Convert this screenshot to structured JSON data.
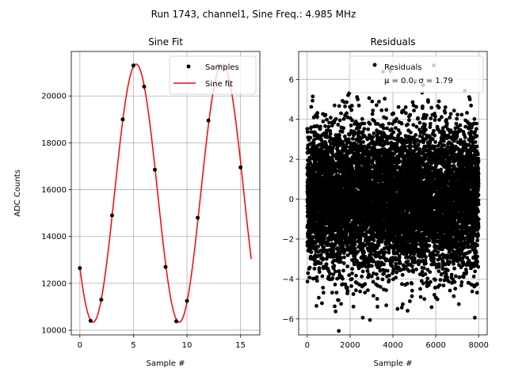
{
  "figure": {
    "suptitle": "Run 1743, channel1, Sine Freq.: 4.985 MHz"
  },
  "chart_data": [
    {
      "type": "scatter+line",
      "title": "Sine Fit",
      "xlabel": "Sample #",
      "ylabel": "ADC Counts",
      "xlim": [
        -0.8,
        16.8
      ],
      "ylim": [
        9800,
        21900
      ],
      "xticks": [
        0,
        5,
        10,
        15
      ],
      "yticks": [
        10000,
        12000,
        14000,
        16000,
        18000,
        20000
      ],
      "grid": true,
      "legend": {
        "placement": "upper-right",
        "entries": [
          "Samples",
          "Sine fit"
        ]
      },
      "series": [
        {
          "name": "Samples",
          "kind": "scatter",
          "color": "#000000",
          "x": [
            0,
            1,
            2,
            3,
            4,
            5,
            6,
            7,
            8,
            9,
            10,
            11,
            12,
            13,
            14,
            15
          ],
          "y": [
            12650,
            10400,
            11300,
            14900,
            19000,
            21300,
            20400,
            16850,
            12700,
            10380,
            11250,
            14800,
            18950,
            21300,
            20450,
            16950
          ]
        },
        {
          "name": "Sine fit",
          "kind": "line",
          "color": "#ff0000",
          "function": "sine",
          "x_range": [
            0,
            16
          ],
          "params": {
            "offset": 15850,
            "amplitude": 5510,
            "period": 8.05,
            "peak_x": 5.25
          }
        }
      ]
    },
    {
      "type": "scatter",
      "title": "Residuals",
      "xlabel": "Sample #",
      "ylabel": "",
      "xlim": [
        -400,
        8400
      ],
      "ylim": [
        -6.8,
        7.4
      ],
      "xticks": [
        0,
        2000,
        4000,
        6000,
        8000
      ],
      "yticks": [
        -6,
        -4,
        -2,
        0,
        2,
        4,
        6
      ],
      "grid": true,
      "legend": {
        "placement": "upper-right",
        "entries": [
          "Residuals",
          "μ = 0.0, σ = 1.79"
        ]
      },
      "series": [
        {
          "name": "Residuals",
          "color": "#000000",
          "n_points": 8000,
          "x_range": [
            0,
            7999
          ],
          "mean": 0.0,
          "sigma": 1.79
        }
      ]
    }
  ]
}
